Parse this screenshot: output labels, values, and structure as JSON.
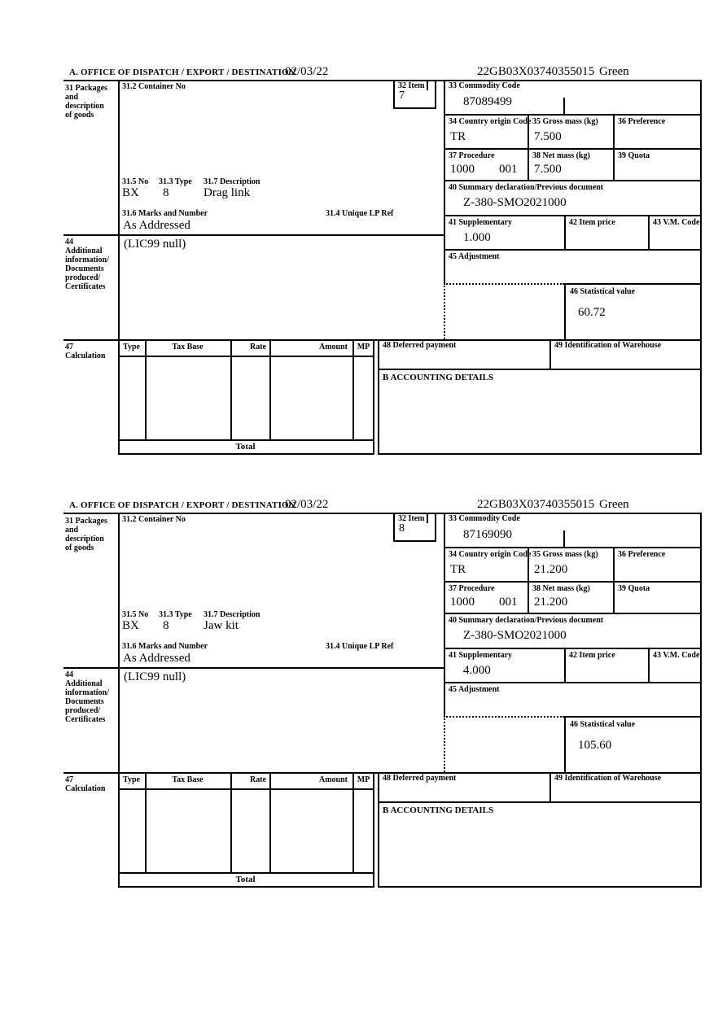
{
  "colors": {
    "ink": "#000000",
    "paper": "#ffffff"
  },
  "header": {
    "date": "02/03/22",
    "reference": "22GB03X03740355015",
    "routing": "Green"
  },
  "labels": {
    "office_of_dispatch": "A.  OFFICE OF DISPATCH / EXPORT / DESTINATION",
    "box31_lines": [
      "31 Packages",
      "and",
      "description",
      "of goods"
    ],
    "container_no": "31.2 Container No",
    "item": "32 Item",
    "commodity_code": "33 Commodity Code",
    "country_origin": "34 Country origin Code",
    "gross_mass": "35 Gross mass (kg)",
    "preference": "36 Preference",
    "procedure": "37 Procedure",
    "net_mass": "38 Net mass (kg)",
    "quota": "39 Quota",
    "summary_declaration": "40 Summary declaration/Previous document",
    "supplementary": "41 Supplementary",
    "item_price": "42 Item price",
    "vm_code": "43 V.M. Code",
    "no_315": "31.5 No",
    "type_313": "31.3 Type",
    "description_317": "31.7 Description",
    "marks_316": "31.6 Marks and Number",
    "unique_lp_314": "31.4 Unique LP Ref",
    "box44_lines": [
      "44",
      "Additional",
      "information/",
      "Documents",
      "produced/",
      "Certificates"
    ],
    "adjustment": "45 Adjustment",
    "statistical_value": "46 Statistical value",
    "box47_lines": [
      "47",
      "Calculation"
    ],
    "col_type": "Type",
    "col_tax_base": "Tax Base",
    "col_rate": "Rate",
    "col_amount": "Amount",
    "col_mp": "MP",
    "deferred_payment": "48 Deferred payment",
    "warehouse_id": "49 Identification of Warehouse",
    "accounting": "B ACCOUNTING DETAILS",
    "total": "Total"
  },
  "sections": [
    {
      "item_number": "7",
      "commodity_code": "87089499",
      "origin_country": "TR",
      "gross_mass": "7.500",
      "procedure_code": "1000",
      "procedure_code2": "001",
      "net_mass": "7.500",
      "previous_document": "Z-380-SMO2021000",
      "supplementary_units": "1.000",
      "packages_no": "BX",
      "packages_type": "8",
      "goods_description": "Drag link",
      "marks_and_number": "As Addressed",
      "additional_information": "(LIC99 null)",
      "statistical_value": "60.72"
    },
    {
      "item_number": "8",
      "commodity_code": "87169090",
      "origin_country": "TR",
      "gross_mass": "21.200",
      "procedure_code": "1000",
      "procedure_code2": "001",
      "net_mass": "21.200",
      "previous_document": "Z-380-SMO2021000",
      "supplementary_units": "4.000",
      "packages_no": "BX",
      "packages_type": "8",
      "goods_description": "Jaw kit",
      "marks_and_number": "As Addressed",
      "additional_information": "(LIC99 null)",
      "statistical_value": "105.60"
    }
  ]
}
